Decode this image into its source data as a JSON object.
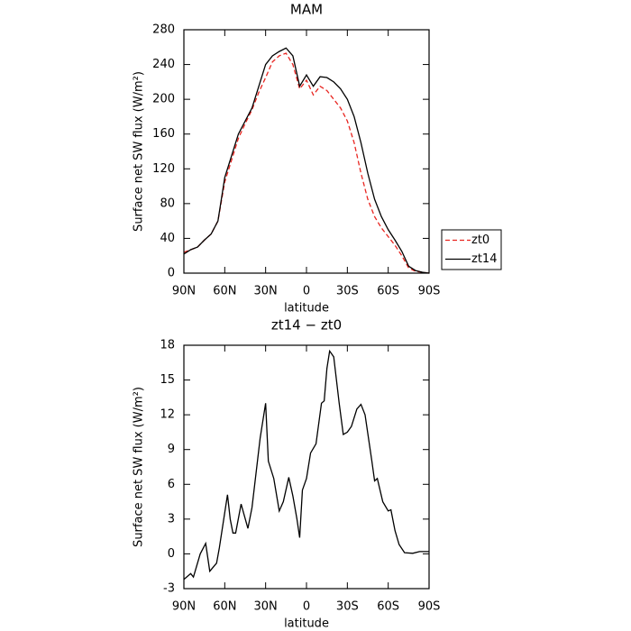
{
  "chart_data": [
    {
      "type": "line",
      "title": "MAM",
      "xlabel": "latitude",
      "ylabel": "Surface net SW flux (W/m²)",
      "x": [
        90,
        85,
        80,
        75,
        70,
        65,
        60,
        55,
        50,
        45,
        40,
        35,
        30,
        25,
        20,
        15,
        10,
        5,
        0,
        -5,
        -10,
        -15,
        -20,
        -25,
        -30,
        -35,
        -40,
        -45,
        -50,
        -55,
        -60,
        -65,
        -70,
        -75,
        -80,
        -85,
        -90
      ],
      "series": [
        {
          "name": "zt0",
          "color": "#e8241f",
          "linestyle": "dashed",
          "values": [
            24,
            27,
            30,
            38,
            45,
            60,
            105,
            130,
            155,
            172,
            188,
            208,
            225,
            243,
            250,
            253,
            240,
            212,
            222,
            205,
            215,
            210,
            200,
            190,
            175,
            150,
            115,
            85,
            65,
            52,
            42,
            32,
            20,
            6,
            2,
            1,
            0
          ]
        },
        {
          "name": "zt14",
          "color": "#000000",
          "linestyle": "solid",
          "values": [
            22,
            27,
            30,
            38,
            45,
            60,
            110,
            135,
            160,
            175,
            190,
            215,
            240,
            250,
            255,
            259,
            250,
            215,
            228,
            215,
            226,
            225,
            220,
            212,
            200,
            180,
            150,
            115,
            85,
            65,
            50,
            38,
            25,
            8,
            3,
            1,
            0
          ]
        }
      ],
      "xlim": [
        90,
        -90
      ],
      "xticks": [
        {
          "value": 90,
          "label": "90N"
        },
        {
          "value": 60,
          "label": "60N"
        },
        {
          "value": 30,
          "label": "30N"
        },
        0,
        {
          "value": -30,
          "label": "30S"
        },
        {
          "value": -60,
          "label": "60S"
        },
        {
          "value": -90,
          "label": "90S"
        }
      ],
      "ylim": [
        0,
        280
      ],
      "yticks": [
        0,
        40,
        80,
        120,
        160,
        200,
        240,
        280
      ],
      "legend": "right"
    },
    {
      "type": "line",
      "title": "zt14 − zt0",
      "xlabel": "latitude",
      "ylabel": "Surface net SW flux (W/m²)",
      "x": [
        90,
        85,
        83,
        78,
        74,
        71,
        66,
        64,
        58,
        56,
        54,
        52,
        48,
        43,
        40,
        34,
        30,
        28,
        24,
        20,
        17,
        13,
        10,
        7,
        5,
        3,
        0,
        -3,
        -7,
        -11,
        -13,
        -15,
        -17,
        -20,
        -24,
        -27,
        -30,
        -33,
        -37,
        -40,
        -43,
        -48,
        -50,
        -52,
        -56,
        -60,
        -62,
        -65,
        -68,
        -72,
        -78,
        -83,
        -90
      ],
      "values": [
        -2.2,
        -1.7,
        -2,
        0,
        0.9,
        -1.5,
        -0.8,
        0.5,
        5.1,
        3,
        1.8,
        1.8,
        4.3,
        2.2,
        4,
        10,
        13,
        8,
        6.5,
        3.7,
        4.5,
        6.6,
        5,
        3,
        1.4,
        5.5,
        6.5,
        8.7,
        9.5,
        13,
        13.2,
        16,
        17.5,
        17,
        13,
        10.3,
        10.5,
        11,
        12.5,
        12.9,
        12,
        8,
        6.3,
        6.5,
        4.5,
        3.7,
        3.8,
        2,
        0.8,
        0.1,
        0.05,
        0.2,
        0.2
      ],
      "color": "#000000",
      "linestyle": "solid",
      "xlim": [
        90,
        -90
      ],
      "xticks": [
        {
          "value": 90,
          "label": "90N"
        },
        {
          "value": 60,
          "label": "60N"
        },
        {
          "value": 30,
          "label": "30N"
        },
        0,
        {
          "value": -30,
          "label": "30S"
        },
        {
          "value": -60,
          "label": "60S"
        },
        {
          "value": -90,
          "label": "90S"
        }
      ],
      "ylim": [
        -3,
        18
      ],
      "yticks": [
        -3,
        0,
        3,
        6,
        9,
        12,
        15,
        18
      ]
    }
  ]
}
